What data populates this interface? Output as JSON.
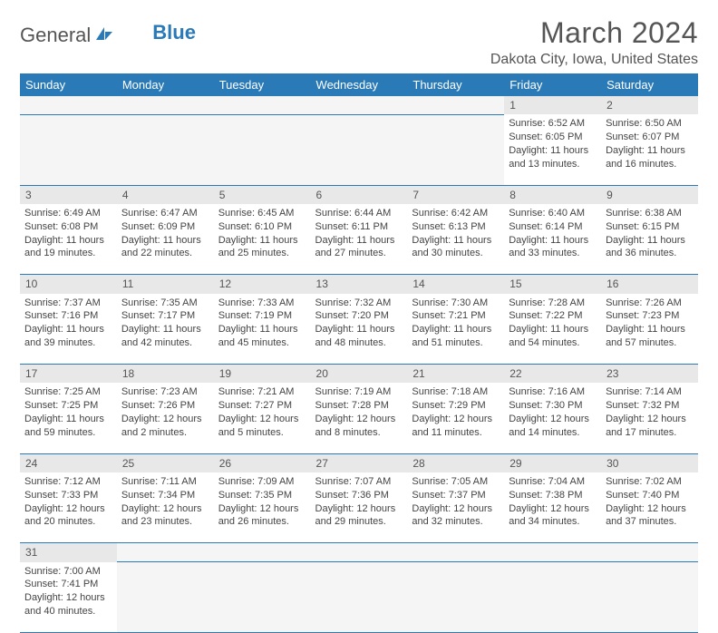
{
  "logo": {
    "text1": "General",
    "text2": "Blue"
  },
  "title": "March 2024",
  "location": "Dakota City, Iowa, United States",
  "colors": {
    "header_bg": "#2a7ab8",
    "header_fg": "#ffffff",
    "daynum_bg": "#e8e8e8",
    "blank_bg": "#f5f5f5",
    "border": "#2a7ab8",
    "text": "#444444",
    "title_text": "#555555"
  },
  "weekdays": [
    "Sunday",
    "Monday",
    "Tuesday",
    "Wednesday",
    "Thursday",
    "Friday",
    "Saturday"
  ],
  "lead_blanks": 5,
  "days": [
    {
      "n": 1,
      "sunrise": "6:52 AM",
      "sunset": "6:05 PM",
      "dl_h": 11,
      "dl_m": 13
    },
    {
      "n": 2,
      "sunrise": "6:50 AM",
      "sunset": "6:07 PM",
      "dl_h": 11,
      "dl_m": 16
    },
    {
      "n": 3,
      "sunrise": "6:49 AM",
      "sunset": "6:08 PM",
      "dl_h": 11,
      "dl_m": 19
    },
    {
      "n": 4,
      "sunrise": "6:47 AM",
      "sunset": "6:09 PM",
      "dl_h": 11,
      "dl_m": 22
    },
    {
      "n": 5,
      "sunrise": "6:45 AM",
      "sunset": "6:10 PM",
      "dl_h": 11,
      "dl_m": 25
    },
    {
      "n": 6,
      "sunrise": "6:44 AM",
      "sunset": "6:11 PM",
      "dl_h": 11,
      "dl_m": 27
    },
    {
      "n": 7,
      "sunrise": "6:42 AM",
      "sunset": "6:13 PM",
      "dl_h": 11,
      "dl_m": 30
    },
    {
      "n": 8,
      "sunrise": "6:40 AM",
      "sunset": "6:14 PM",
      "dl_h": 11,
      "dl_m": 33
    },
    {
      "n": 9,
      "sunrise": "6:38 AM",
      "sunset": "6:15 PM",
      "dl_h": 11,
      "dl_m": 36
    },
    {
      "n": 10,
      "sunrise": "7:37 AM",
      "sunset": "7:16 PM",
      "dl_h": 11,
      "dl_m": 39
    },
    {
      "n": 11,
      "sunrise": "7:35 AM",
      "sunset": "7:17 PM",
      "dl_h": 11,
      "dl_m": 42
    },
    {
      "n": 12,
      "sunrise": "7:33 AM",
      "sunset": "7:19 PM",
      "dl_h": 11,
      "dl_m": 45
    },
    {
      "n": 13,
      "sunrise": "7:32 AM",
      "sunset": "7:20 PM",
      "dl_h": 11,
      "dl_m": 48
    },
    {
      "n": 14,
      "sunrise": "7:30 AM",
      "sunset": "7:21 PM",
      "dl_h": 11,
      "dl_m": 51
    },
    {
      "n": 15,
      "sunrise": "7:28 AM",
      "sunset": "7:22 PM",
      "dl_h": 11,
      "dl_m": 54
    },
    {
      "n": 16,
      "sunrise": "7:26 AM",
      "sunset": "7:23 PM",
      "dl_h": 11,
      "dl_m": 57
    },
    {
      "n": 17,
      "sunrise": "7:25 AM",
      "sunset": "7:25 PM",
      "dl_h": 11,
      "dl_m": 59
    },
    {
      "n": 18,
      "sunrise": "7:23 AM",
      "sunset": "7:26 PM",
      "dl_h": 12,
      "dl_m": 2
    },
    {
      "n": 19,
      "sunrise": "7:21 AM",
      "sunset": "7:27 PM",
      "dl_h": 12,
      "dl_m": 5
    },
    {
      "n": 20,
      "sunrise": "7:19 AM",
      "sunset": "7:28 PM",
      "dl_h": 12,
      "dl_m": 8
    },
    {
      "n": 21,
      "sunrise": "7:18 AM",
      "sunset": "7:29 PM",
      "dl_h": 12,
      "dl_m": 11
    },
    {
      "n": 22,
      "sunrise": "7:16 AM",
      "sunset": "7:30 PM",
      "dl_h": 12,
      "dl_m": 14
    },
    {
      "n": 23,
      "sunrise": "7:14 AM",
      "sunset": "7:32 PM",
      "dl_h": 12,
      "dl_m": 17
    },
    {
      "n": 24,
      "sunrise": "7:12 AM",
      "sunset": "7:33 PM",
      "dl_h": 12,
      "dl_m": 20
    },
    {
      "n": 25,
      "sunrise": "7:11 AM",
      "sunset": "7:34 PM",
      "dl_h": 12,
      "dl_m": 23
    },
    {
      "n": 26,
      "sunrise": "7:09 AM",
      "sunset": "7:35 PM",
      "dl_h": 12,
      "dl_m": 26
    },
    {
      "n": 27,
      "sunrise": "7:07 AM",
      "sunset": "7:36 PM",
      "dl_h": 12,
      "dl_m": 29
    },
    {
      "n": 28,
      "sunrise": "7:05 AM",
      "sunset": "7:37 PM",
      "dl_h": 12,
      "dl_m": 32
    },
    {
      "n": 29,
      "sunrise": "7:04 AM",
      "sunset": "7:38 PM",
      "dl_h": 12,
      "dl_m": 34
    },
    {
      "n": 30,
      "sunrise": "7:02 AM",
      "sunset": "7:40 PM",
      "dl_h": 12,
      "dl_m": 37
    },
    {
      "n": 31,
      "sunrise": "7:00 AM",
      "sunset": "7:41 PM",
      "dl_h": 12,
      "dl_m": 40
    }
  ]
}
